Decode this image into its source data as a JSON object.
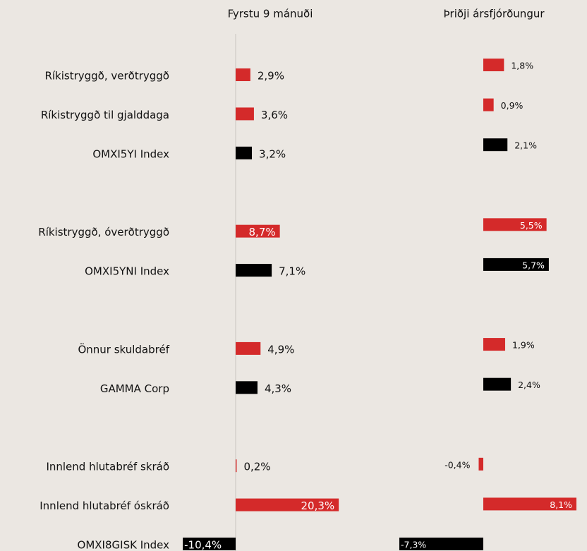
{
  "chart_data": {
    "type": "bar",
    "orientation": "horizontal",
    "categories": [
      "Ríkistryggð, verðtryggð",
      "Ríkistryggð til gjalddaga",
      "OMXI5YI Index",
      null,
      "Ríkistryggð, óverðtryggð",
      "OMXI5YNI Index",
      null,
      "Önnur skuldabréf",
      "GAMMA Corp",
      null,
      "Innlend hlutabréf skráð",
      "Innlend hlutabréf óskráð",
      "OMXI8GISK Index"
    ],
    "series": [
      {
        "name": "Fyrstu 9 mánuði",
        "color": [
          "#d42a2a",
          "#d42a2a",
          "#000000",
          null,
          "#d42a2a",
          "#000000",
          null,
          "#d42a2a",
          "#000000",
          null,
          "#d42a2a",
          "#d42a2a",
          "#000000"
        ],
        "values": [
          2.9,
          3.6,
          3.2,
          null,
          8.7,
          7.1,
          null,
          4.9,
          4.3,
          null,
          0.2,
          20.3,
          -10.4
        ],
        "value_labels": [
          "2,9%",
          "3,6%",
          "3,2%",
          null,
          "8,7%",
          "7,1%",
          null,
          "4,9%",
          "4,3%",
          null,
          "0,2%",
          "20,3%",
          "-10,4%"
        ]
      },
      {
        "name": "Þriðji ársfjórðungur",
        "color": [
          "#d42a2a",
          "#d42a2a",
          "#000000",
          null,
          "#d42a2a",
          "#000000",
          null,
          "#d42a2a",
          "#000000",
          null,
          "#d42a2a",
          "#d42a2a",
          "#000000"
        ],
        "values": [
          1.8,
          0.9,
          2.1,
          null,
          5.5,
          5.7,
          null,
          1.9,
          2.4,
          null,
          -0.4,
          8.1,
          -7.3
        ],
        "value_labels": [
          "1,8%",
          "0,9%",
          "2,1%",
          null,
          "5,5%",
          "5,7%",
          null,
          "1,9%",
          "2,4%",
          null,
          "-0,4%",
          "8,1%",
          "-7,3%"
        ]
      }
    ]
  }
}
